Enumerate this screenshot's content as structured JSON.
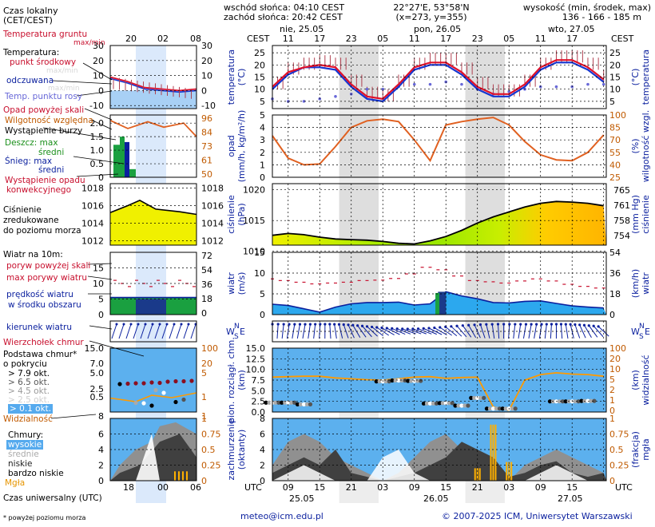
{
  "header": {
    "local_time_label": "Czas lokalny",
    "local_time_zone": "(CET/CEST)",
    "sunrise": "wschód słońca: 04:10 CEST",
    "sunset": "zachód słońca: 20:42 CEST",
    "coords": "22°27'E, 53°58'N",
    "grid": "(x=273,  y=355)",
    "height_title": "wysokość (min, środek, max)",
    "height_values": "136 - 166 - 185 m",
    "cest_left": "CEST",
    "cest_right": "CEST",
    "days_top": [
      "nie, 25.05",
      "pon, 26.05",
      "wto, 27.05"
    ],
    "hours_top": [
      "11",
      "17",
      "23",
      "05",
      "11",
      "17",
      "23",
      "05",
      "11",
      "17"
    ],
    "mini_hours_top": [
      "20",
      "02",
      "08"
    ]
  },
  "footer": {
    "utc_left": "UTC",
    "utc_right": "UTC",
    "hours_bottom": [
      "09",
      "15",
      "21",
      "03",
      "09",
      "15",
      "21",
      "03",
      "09",
      "15"
    ],
    "dates_bottom": [
      "25.05",
      "26.05",
      "27.05"
    ],
    "mini_hours_bottom": [
      "18",
      "00",
      "06"
    ],
    "universal_time": "Czas uniwersalny (UTC)",
    "footnote": "* powyżej poziomu morza",
    "email": "meteo@icm.edu.pl",
    "copyright": "© 2007-2025 ICM, Uniwersytet Warszawski"
  },
  "legend": {
    "temp_ground": "Temperatura gruntu",
    "temp_ground_sub": "max/min",
    "temperature": "Temperatura:",
    "midpoint": "punkt środkowy",
    "max_min_faded": "max/min",
    "perceived": "odczuwana",
    "perceived_faded": "max/min",
    "dewpoint": "Temp. punktu rosy",
    "precip_above": "Opad powyżej skali",
    "humidity": "Wilgotność względna",
    "storm": "Wystąpienie burzy",
    "rain": "Deszcz: max",
    "rain_mid": "średni",
    "snow": "Śnieg: max",
    "snow_mid": "średni",
    "conv": "Wystąpienie opadu",
    "conv2": "konwekcyjnego",
    "pressure1": "Ciśnienie",
    "pressure2": "zredukowane",
    "pressure3": "do poziomu morza",
    "wind_title": "Wiatr na 10m:",
    "gust_above": "poryw powyżej skali",
    "gust_max": "max porywy wiatru",
    "wind_speed": "prędkość wiatru",
    "wind_speed2": "w środku obszaru",
    "wind_dir": "kierunek wiatru",
    "cb": "Wierzchołek chmur",
    "cloud_base": "Podstawa chmur*",
    "cloud_base2": "o pokryciu",
    "okt": [
      "> 7.9 okt.",
      "> 6.5 okt.",
      "> 4.5 okt.",
      "> 2.5 okt.",
      "> 0.1 okt."
    ],
    "visibility": "Widzialność",
    "clouds": "Chmury:",
    "c_high": "wysokie",
    "c_mid": "średnie",
    "c_low": "niskie",
    "c_vlow": "bardzo niskie",
    "fog": "Mgła"
  },
  "axes": {
    "temp_left": "temperatura",
    "temp_left_unit": "(°C)",
    "temp_right_unit": "(°C)",
    "temp_right": "temperatura",
    "precip_left": "opad",
    "precip_left_unit": "(mm/h, kg/m²/h)",
    "precip_right_unit": "(%)",
    "precip_right": "wilgotność wzgl.",
    "press_left": "ciśnienie",
    "press_left_unit": "(hPa)",
    "press_right_unit": "(mm Hg)",
    "press_right": "ciśnienie",
    "wind_left": "wiatr",
    "wind_left_unit": "(m/s)",
    "wind_right_unit": "(km/h)",
    "wind_right": "wiatr",
    "cl_left1": "pion. rozciągł. chm.",
    "cl_left2": "(km)",
    "cl_right_unit": "(km)",
    "cl_right": "widzialność",
    "cov_left1": "zachmurzenie",
    "cov_left2": "(oktanty)",
    "cov_right_unit": "(frakcja)",
    "cov_right": "mgła",
    "compass": [
      "W",
      "N",
      "S",
      "E"
    ]
  },
  "chart_data": [
    {
      "type": "line",
      "panel": "temperature",
      "x_hours_utc": [
        6,
        9,
        12,
        15,
        18,
        21,
        24,
        27,
        30,
        33,
        36,
        39,
        42,
        45,
        48,
        51,
        54,
        57,
        60,
        63,
        66,
        69
      ],
      "ylim": [
        2,
        28
      ],
      "yticks_left": [
        5,
        10,
        15,
        20,
        25
      ],
      "series": [
        {
          "name": "punkt środkowy",
          "color": "#e0102a",
          "values": [
            11,
            17,
            19,
            20,
            19,
            12,
            7,
            6,
            12,
            19,
            21,
            21,
            17,
            11,
            8,
            8,
            12,
            19,
            22,
            22,
            19,
            14
          ]
        },
        {
          "name": "odczuwana",
          "color": "#1535d0",
          "values": [
            10,
            16,
            19,
            19,
            18,
            11,
            6,
            5,
            11,
            18,
            20,
            20,
            16,
            10,
            7,
            7,
            11,
            18,
            21,
            21,
            18,
            13
          ]
        },
        {
          "name": "Temp. punktu rosy",
          "color": "#6868d8",
          "values": [
            6,
            5,
            5,
            6,
            7,
            8,
            10,
            10,
            11,
            12,
            12,
            13,
            12,
            10,
            8,
            9,
            10,
            11,
            11,
            11,
            12,
            12
          ]
        }
      ]
    },
    {
      "type": "line",
      "panel": "precipitation_humidity",
      "x_hours_utc": [
        6,
        9,
        12,
        15,
        18,
        21,
        24,
        27,
        30,
        33,
        36,
        39,
        42,
        45,
        48,
        51,
        54,
        57,
        60,
        63,
        66,
        69
      ],
      "ylim_left": [
        0,
        5
      ],
      "yticks_left": [
        0,
        1,
        2,
        3,
        4,
        5
      ],
      "ylim_right": [
        25,
        100
      ],
      "yticks_right": [
        25,
        40,
        55,
        70,
        85,
        100
      ],
      "series": [
        {
          "name": "Wilgotność względna",
          "color": "#e06020",
          "values": [
            75,
            48,
            40,
            41,
            62,
            85,
            93,
            95,
            92,
            70,
            45,
            88,
            92,
            95,
            97,
            88,
            68,
            52,
            46,
            45,
            55,
            76
          ]
        }
      ]
    },
    {
      "type": "area",
      "panel": "pressure",
      "x_hours_utc": [
        6,
        9,
        12,
        15,
        18,
        21,
        24,
        27,
        30,
        33,
        36,
        39,
        42,
        45,
        48,
        51,
        54,
        57,
        60,
        63,
        66,
        69
      ],
      "ylim_left": [
        1011,
        1021
      ],
      "yticks_left": [
        1010,
        1015,
        1020
      ],
      "yticks_right": [
        754,
        758,
        761,
        765
      ],
      "series": [
        {
          "name": "Ciśnienie zredukowane do poziomu morza",
          "color": "#000000",
          "values": [
            1012.6,
            1012.9,
            1012.7,
            1012.3,
            1012,
            1011.9,
            1011.8,
            1011.6,
            1011.3,
            1011.2,
            1011.7,
            1012.4,
            1013.4,
            1014.6,
            1015.6,
            1016.4,
            1017.2,
            1017.8,
            1018.1,
            1018.0,
            1017.8,
            1017.4
          ]
        }
      ]
    },
    {
      "type": "area",
      "panel": "wind",
      "x_hours_utc": [
        6,
        9,
        12,
        15,
        18,
        21,
        24,
        27,
        30,
        33,
        36,
        39,
        42,
        45,
        48,
        51,
        54,
        57,
        60,
        63,
        66,
        69
      ],
      "ylim_left": [
        0,
        15
      ],
      "yticks_left": [
        0,
        5,
        10,
        15
      ],
      "yticks_right": [
        0,
        18,
        36,
        54
      ],
      "series": [
        {
          "name": "prędkość wiatru",
          "color": "#2c8ad8",
          "values": [
            2.5,
            2.2,
            1.4,
            0.6,
            1.8,
            2.6,
            2.9,
            2.9,
            3,
            2.3,
            2.6,
            5.5,
            4.5,
            3.8,
            2.9,
            2.8,
            3.2,
            3.3,
            2.7,
            2.1,
            1.8,
            1.6
          ]
        },
        {
          "name": "max porywy wiatru",
          "color": "#c8102e",
          "values": [
            8.6,
            8.2,
            7.8,
            7.4,
            7.6,
            7.8,
            8.2,
            8.3,
            8.7,
            9.8,
            11.4,
            10.8,
            9.3,
            8.2,
            7.9,
            7.6,
            8.1,
            8.6,
            8.1,
            7.3,
            6.8,
            6.4
          ]
        }
      ]
    },
    {
      "type": "line",
      "panel": "cloud_visibility",
      "x_hours_utc": [
        6,
        9,
        12,
        15,
        18,
        21,
        24,
        27,
        30,
        33,
        36,
        39,
        42,
        45,
        48,
        51,
        54,
        57,
        60,
        63,
        66,
        69
      ],
      "ylim_left": [
        0,
        15
      ],
      "yticks_left": [
        0,
        2.5,
        5.0,
        7.5,
        10.0,
        12.5,
        15.0
      ],
      "yticks_right": [
        0,
        1,
        2,
        5,
        10,
        20,
        100
      ],
      "series": [
        {
          "name": "Widzialność",
          "color": "#ff9a00",
          "values": [
            8.2,
            8.3,
            8.4,
            8.4,
            8.0,
            7.8,
            7.6,
            7.5,
            7.8,
            8.2,
            8.3,
            7.9,
            8.1,
            8.2,
            1.2,
            0.4,
            7.5,
            8.8,
            9.2,
            8.9,
            8.8,
            8.4
          ]
        }
      ]
    },
    {
      "type": "area",
      "panel": "cloud_cover",
      "x_hours_utc": [
        6,
        9,
        12,
        15,
        18,
        21,
        24,
        27,
        30,
        33,
        36,
        39,
        42,
        45,
        48,
        51,
        54,
        57,
        60,
        63,
        66,
        69
      ],
      "ylim_left": [
        0,
        8
      ],
      "yticks_left": [
        0,
        2,
        4,
        6,
        8
      ],
      "yticks_right": [
        0,
        0.25,
        0.5,
        0.75,
        1
      ],
      "series": [
        {
          "name": "niskie",
          "color": "#404040",
          "values": [
            1,
            2,
            3,
            2,
            4,
            1,
            0.5,
            0,
            0.5,
            1,
            2,
            3,
            5,
            4,
            3,
            0.5,
            1,
            2,
            2.5,
            1,
            0.5,
            1
          ]
        },
        {
          "name": "średnie",
          "color": "#909090",
          "values": [
            2,
            5,
            6,
            5,
            3,
            2,
            1,
            0,
            1,
            3,
            5,
            6,
            4,
            2,
            1,
            0,
            2,
            3,
            4,
            3,
            2,
            1
          ]
        },
        {
          "name": "wysokie",
          "color": "#ffffff",
          "values": [
            0,
            1,
            2,
            1,
            0,
            0,
            0,
            3,
            4,
            1,
            0,
            0,
            0,
            0,
            0,
            0,
            0,
            1,
            2,
            1,
            0,
            0
          ]
        },
        {
          "name": "Mgła",
          "color": "#ffb000",
          "values": [
            0,
            0,
            0,
            0,
            0,
            0,
            0,
            0,
            0,
            0,
            0,
            0,
            0,
            0.2,
            0.9,
            0.3,
            0,
            0,
            0,
            0,
            0,
            0
          ]
        }
      ]
    }
  ]
}
